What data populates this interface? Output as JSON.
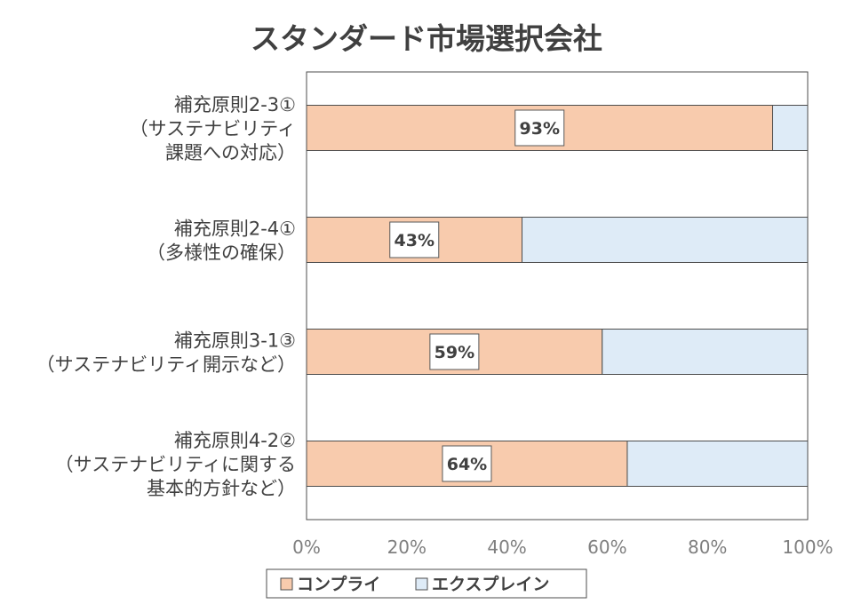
{
  "chart_data": {
    "type": "bar",
    "orientation": "horizontal",
    "stacked": true,
    "percent_stacked": true,
    "title": "スタンダード市場選択会社",
    "categories": [
      [
        "補充原則2-3①",
        "（サステナビリティ",
        "課題への対応）"
      ],
      [
        "補充原則2-4①",
        "（多様性の確保）"
      ],
      [
        "補充原則3-1③",
        "（サステナビリティ開示など）"
      ],
      [
        "補充原則4-2②",
        "（サステナビリティに関する",
        "基本的方針など）"
      ]
    ],
    "series": [
      {
        "name": "コンプライ",
        "values": [
          93,
          43,
          59,
          64
        ],
        "color": "#f8cbad",
        "labels": [
          "93%",
          "43%",
          "59%",
          "64%"
        ]
      },
      {
        "name": "エクスプレイン",
        "values": [
          7,
          57,
          41,
          36
        ],
        "color": "#deebf7"
      }
    ],
    "xlim": [
      0,
      100
    ],
    "xticks": [
      "0%",
      "20%",
      "40%",
      "60%",
      "80%",
      "100%"
    ],
    "grid": false,
    "legend_position": "bottom"
  }
}
